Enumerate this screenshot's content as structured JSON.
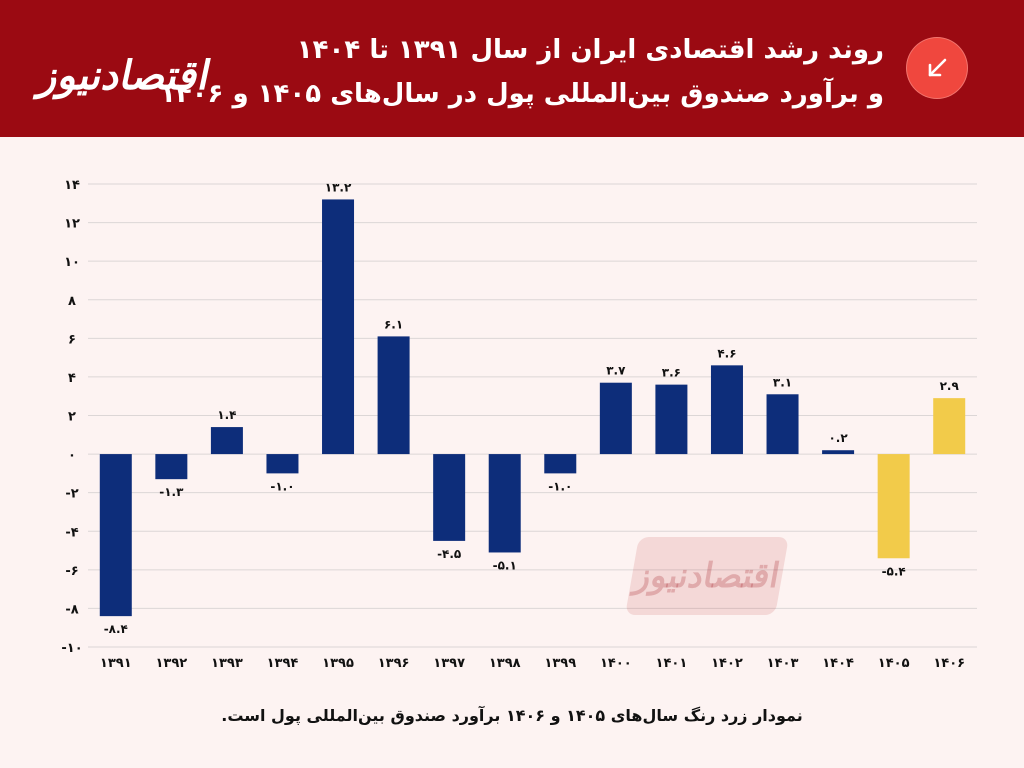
{
  "header": {
    "logo": "اقتصادنیوز",
    "title_line1": "روند رشد اقتصادی ایران از سال ۱۳۹۱ تا ۱۴۰۴",
    "title_line2": "و برآورد صندوق بین‌المللی پول در سال‌های ۱۴۰۵ و ۱۴۰۶",
    "badge_icon": "arrow-down-left-icon"
  },
  "watermark": "اقتصادنیوز",
  "footnote": "نمودار زرد رنگ سال‌های ۱۴۰۵ و ۱۴۰۶ برآورد صندوق بین‌المللی پول است.",
  "colors": {
    "header_bg": "#9b0a12",
    "actual": "#0d2d7a",
    "estimate": "#f2cb4a",
    "badge": "#f0473e",
    "background": "#fdf3f2"
  },
  "chart_data": {
    "type": "bar",
    "categories": [
      "۱۳۹۱",
      "۱۳۹۲",
      "۱۳۹۳",
      "۱۳۹۴",
      "۱۳۹۵",
      "۱۳۹۶",
      "۱۳۹۷",
      "۱۳۹۸",
      "۱۳۹۹",
      "۱۴۰۰",
      "۱۴۰۱",
      "۱۴۰۲",
      "۱۴۰۳",
      "۱۴۰۴",
      "۱۴۰۵",
      "۱۴۰۶"
    ],
    "values": [
      -8.4,
      -1.3,
      1.4,
      -1.0,
      13.2,
      6.1,
      -4.5,
      -5.1,
      -1.0,
      3.7,
      3.6,
      4.6,
      3.1,
      0.2,
      -5.4,
      2.9
    ],
    "value_labels": [
      "-۸.۴",
      "-۱.۳",
      "۱.۴",
      "-۱.۰",
      "۱۳.۲",
      "۶.۱",
      "-۴.۵",
      "-۵.۱",
      "-۱.۰",
      "۳.۷",
      "۳.۶",
      "۴.۶",
      "۳.۱",
      "۰.۲",
      "-۵.۴",
      "۲.۹"
    ],
    "estimate": [
      false,
      false,
      false,
      false,
      false,
      false,
      false,
      false,
      false,
      false,
      false,
      false,
      false,
      false,
      true,
      true
    ],
    "yticks": [
      14,
      12,
      10,
      8,
      6,
      4,
      2,
      0,
      -2,
      -4,
      -6,
      -8,
      -10
    ],
    "ytick_labels": [
      "۱۴",
      "۱۲",
      "۱۰",
      "۸",
      "۶",
      "۴",
      "۲",
      "۰",
      "-۲",
      "-۴",
      "-۶",
      "-۸",
      "-۱۰"
    ],
    "ylim": [
      -10,
      14
    ],
    "grid": true,
    "title": "",
    "xlabel": "",
    "ylabel": ""
  }
}
